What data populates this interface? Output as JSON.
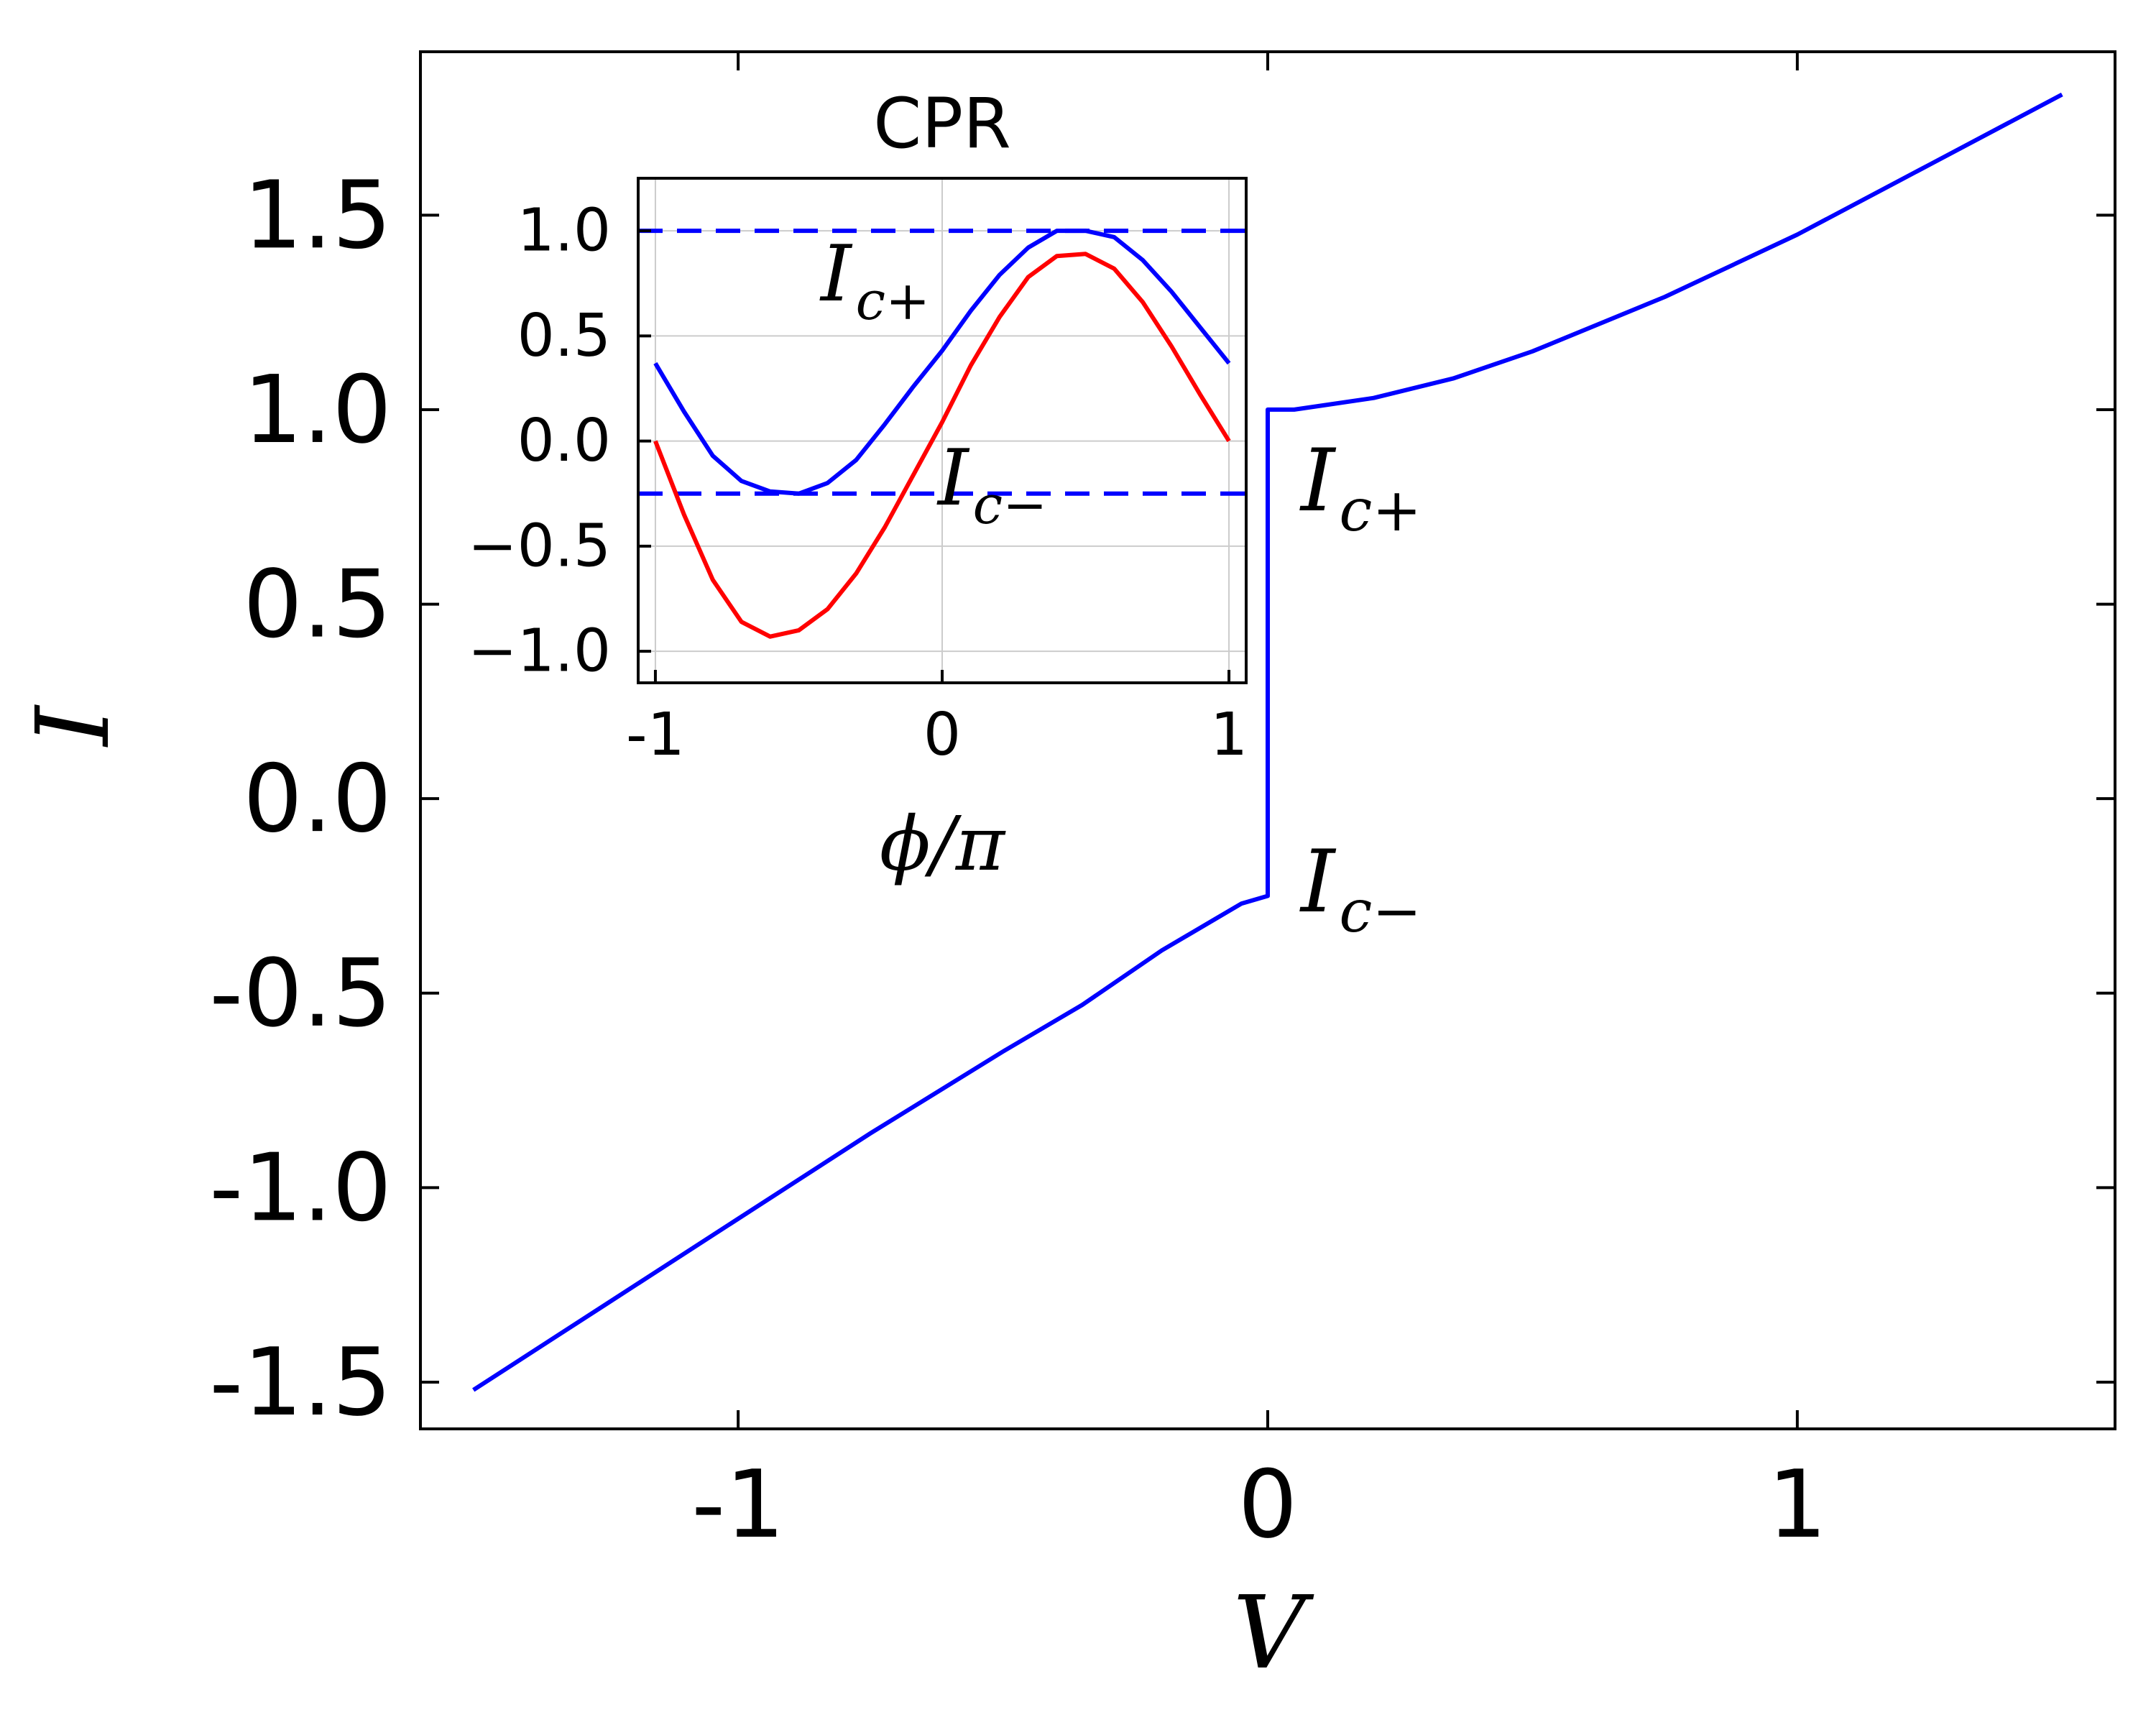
{
  "chart_data": [
    {
      "type": "line",
      "title": "",
      "xlabel": "V",
      "ylabel": "I",
      "xlim": [
        -1.6,
        1.6
      ],
      "ylim": [
        -1.62,
        1.92
      ],
      "xticks": [
        -1,
        0,
        1
      ],
      "xtick_labels": [
        "-1",
        "0",
        "1"
      ],
      "yticks": [
        -1.5,
        -1.0,
        -0.5,
        0.0,
        0.5,
        1.0,
        1.5
      ],
      "ytick_labels": [
        "-1.5",
        "-1.0",
        "-0.5",
        "0.0",
        "0.5",
        "1.0",
        "1.5"
      ],
      "grid": false,
      "series": [
        {
          "color": "#0000ff",
          "x": [
            -1.5,
            -1.25,
            -1.0,
            -0.75,
            -0.5,
            -0.35,
            -0.2,
            -0.1,
            -0.05,
            0.0,
            0.0,
            0.05,
            0.1,
            0.2,
            0.35,
            0.5,
            0.75,
            1.0,
            1.25,
            1.5
          ],
          "y": [
            -1.52,
            -1.3,
            -1.08,
            -0.86,
            -0.65,
            -0.53,
            -0.39,
            -0.31,
            -0.27,
            -0.25,
            1.0,
            1.0,
            1.01,
            1.03,
            1.08,
            1.15,
            1.29,
            1.45,
            1.63,
            1.81
          ]
        }
      ],
      "annotations": [
        {
          "text": "I",
          "sub": "c+",
          "x": 0.06,
          "y": 0.82
        },
        {
          "text": "I",
          "sub": "c−",
          "x": 0.06,
          "y": -0.25
        }
      ]
    },
    {
      "type": "line",
      "title": "CPR",
      "xlabel": "ϕ/π",
      "ylabel": "",
      "xlim": [
        -1.06,
        1.06
      ],
      "ylim": [
        -1.15,
        1.25
      ],
      "xticks": [
        -1,
        0,
        1
      ],
      "xtick_labels": [
        "-1",
        "0",
        "1"
      ],
      "yticks": [
        -1.0,
        -0.5,
        0.0,
        0.5,
        1.0
      ],
      "ytick_labels": [
        "−1.0",
        "−0.5",
        "0.0",
        "0.5",
        "1.0"
      ],
      "grid": true,
      "series": [
        {
          "color": "#ff0000",
          "x": [
            -1.0,
            -0.9,
            -0.8,
            -0.7,
            -0.6,
            -0.5,
            -0.4,
            -0.3,
            -0.2,
            -0.1,
            0.0,
            0.1,
            0.2,
            0.3,
            0.4,
            0.5,
            0.6,
            0.7,
            0.8,
            0.9,
            1.0
          ],
          "y": [
            0.0,
            -0.35,
            -0.66,
            -0.86,
            -0.93,
            -0.9,
            -0.8,
            -0.63,
            -0.41,
            -0.16,
            0.09,
            0.36,
            0.59,
            0.78,
            0.88,
            0.89,
            0.82,
            0.66,
            0.45,
            0.22,
            0.0
          ]
        },
        {
          "color": "#0000ff",
          "x": [
            -1.0,
            -0.9,
            -0.8,
            -0.7,
            -0.6,
            -0.5,
            -0.4,
            -0.3,
            -0.2,
            -0.1,
            0.0,
            0.1,
            0.2,
            0.3,
            0.4,
            0.5,
            0.6,
            0.7,
            0.8,
            0.9,
            1.0
          ],
          "y": [
            0.37,
            0.14,
            -0.07,
            -0.19,
            -0.24,
            -0.25,
            -0.2,
            -0.09,
            0.08,
            0.26,
            0.43,
            0.62,
            0.79,
            0.92,
            1.0,
            1.0,
            0.97,
            0.86,
            0.71,
            0.54,
            0.37
          ]
        }
      ],
      "reference_lines": [
        {
          "y": 1.0,
          "color": "#0000ff",
          "style": "dashed",
          "label": "I",
          "sub": "c+"
        },
        {
          "y": -0.25,
          "color": "#0000ff",
          "style": "dashed",
          "label": "I",
          "sub": "c−"
        }
      ]
    }
  ]
}
